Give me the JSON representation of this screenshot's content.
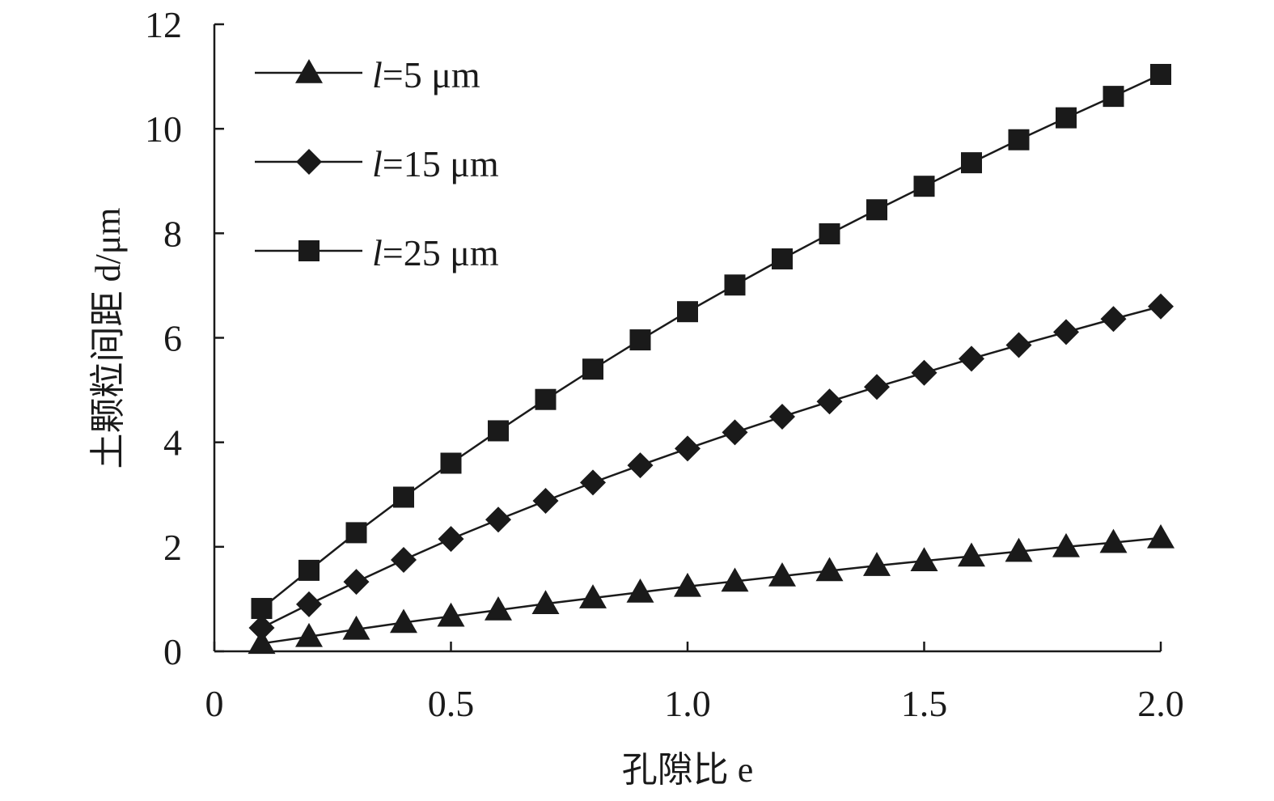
{
  "chart_data": {
    "type": "line",
    "xlabel": "孔隙比 e",
    "ylabel": "土颗粒间距 d/μm",
    "xlim": [
      0,
      2.0
    ],
    "ylim": [
      0,
      12
    ],
    "x_ticks": [
      0,
      0.5,
      1.0,
      1.5,
      2.0
    ],
    "x_tick_labels": [
      "0",
      "0.5",
      "1.0",
      "1.5",
      "2.0"
    ],
    "y_ticks": [
      0,
      2,
      4,
      6,
      8,
      10,
      12
    ],
    "y_tick_labels": [
      "0",
      "2",
      "4",
      "6",
      "8",
      "10",
      "12"
    ],
    "grid": false,
    "legend_position": "top-left",
    "x": [
      0.1,
      0.2,
      0.3,
      0.4,
      0.5,
      0.6,
      0.7,
      0.8,
      0.9,
      1.0,
      1.1,
      1.2,
      1.3,
      1.4,
      1.5,
      1.6,
      1.7,
      1.8,
      1.9,
      2.0
    ],
    "series": [
      {
        "name": "l=5 μm",
        "label_italic": "l",
        "label_rest": "=5 μm",
        "marker": "triangle",
        "values": [
          0.15,
          0.28,
          0.42,
          0.55,
          0.67,
          0.79,
          0.91,
          1.02,
          1.13,
          1.24,
          1.34,
          1.44,
          1.54,
          1.64,
          1.73,
          1.82,
          1.91,
          2.0,
          2.08,
          2.17
        ]
      },
      {
        "name": "l=15 μm",
        "label_italic": "l",
        "label_rest": "=15 μm",
        "marker": "diamond",
        "values": [
          0.45,
          0.9,
          1.33,
          1.75,
          2.15,
          2.52,
          2.88,
          3.23,
          3.56,
          3.88,
          4.19,
          4.49,
          4.78,
          5.06,
          5.33,
          5.6,
          5.86,
          6.11,
          6.36,
          6.6
        ]
      },
      {
        "name": "l=25 μm",
        "label_italic": "l",
        "label_rest": "=25 μm",
        "marker": "square",
        "values": [
          0.82,
          1.55,
          2.27,
          2.95,
          3.6,
          4.22,
          4.82,
          5.4,
          5.96,
          6.5,
          7.01,
          7.51,
          7.99,
          8.45,
          8.9,
          9.35,
          9.79,
          10.21,
          10.62,
          11.04
        ]
      }
    ]
  }
}
